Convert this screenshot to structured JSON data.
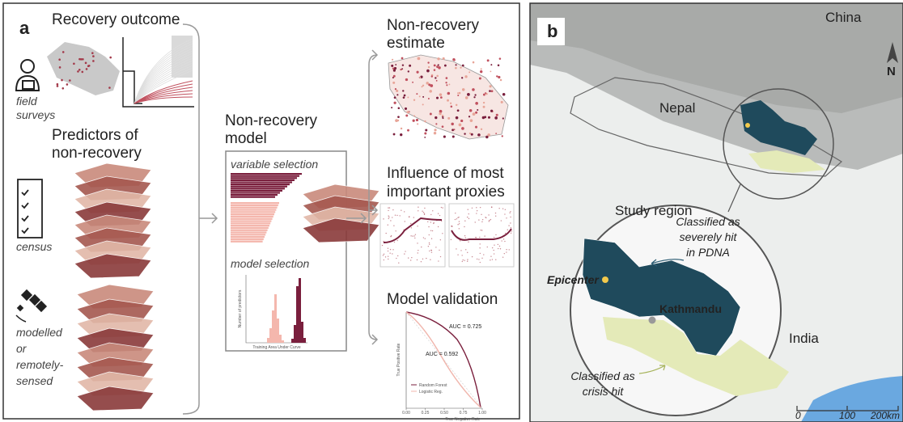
{
  "panel_a": {
    "label": "a",
    "recovery_outcome": {
      "title": "Recovery outcome",
      "source_lines": [
        "field",
        "surveys"
      ]
    },
    "predictors": {
      "title_lines": [
        "Predictors of",
        "non-recovery"
      ],
      "census": "census",
      "remote_lines": [
        "modelled",
        "or",
        "remotely-",
        "sensed"
      ]
    },
    "model": {
      "title_lines": [
        "Non-recovery",
        "model"
      ],
      "variable_selection": "variable selection",
      "model_selection": "model selection",
      "hist_y_label": "Number of predictors",
      "hist_x_label": "Training Area Under Curve"
    },
    "estimate": {
      "title_lines": [
        "Non-recovery",
        "estimate"
      ]
    },
    "influence": {
      "title_lines": [
        "Influence of most",
        "important proxies"
      ]
    },
    "validation": {
      "title": "Model validation",
      "auc_rf": "AUC = 0.725",
      "auc_lr": "AUC = 0.592",
      "legend": [
        "Random Forest",
        "Logistic Reg."
      ],
      "y_label": "True Positive Rate",
      "x_label": "True Negative Rate",
      "x_ticks": [
        "0.00",
        "0.25",
        "0.50",
        "0.75",
        "1.00"
      ]
    }
  },
  "panel_b": {
    "label": "b",
    "countries": {
      "china": "China",
      "nepal": "Nepal",
      "india": "India"
    },
    "north": "N",
    "inset": {
      "title": "Study region",
      "severe_lines": [
        "Classified as",
        "severely hit",
        "in PDNA"
      ],
      "epicenter": "Epicenter",
      "kathmandu": "Kathmandu",
      "crisis_lines": [
        "Classified as",
        "crisis hit"
      ]
    },
    "scale": [
      "0",
      "100",
      "200km"
    ]
  }
}
